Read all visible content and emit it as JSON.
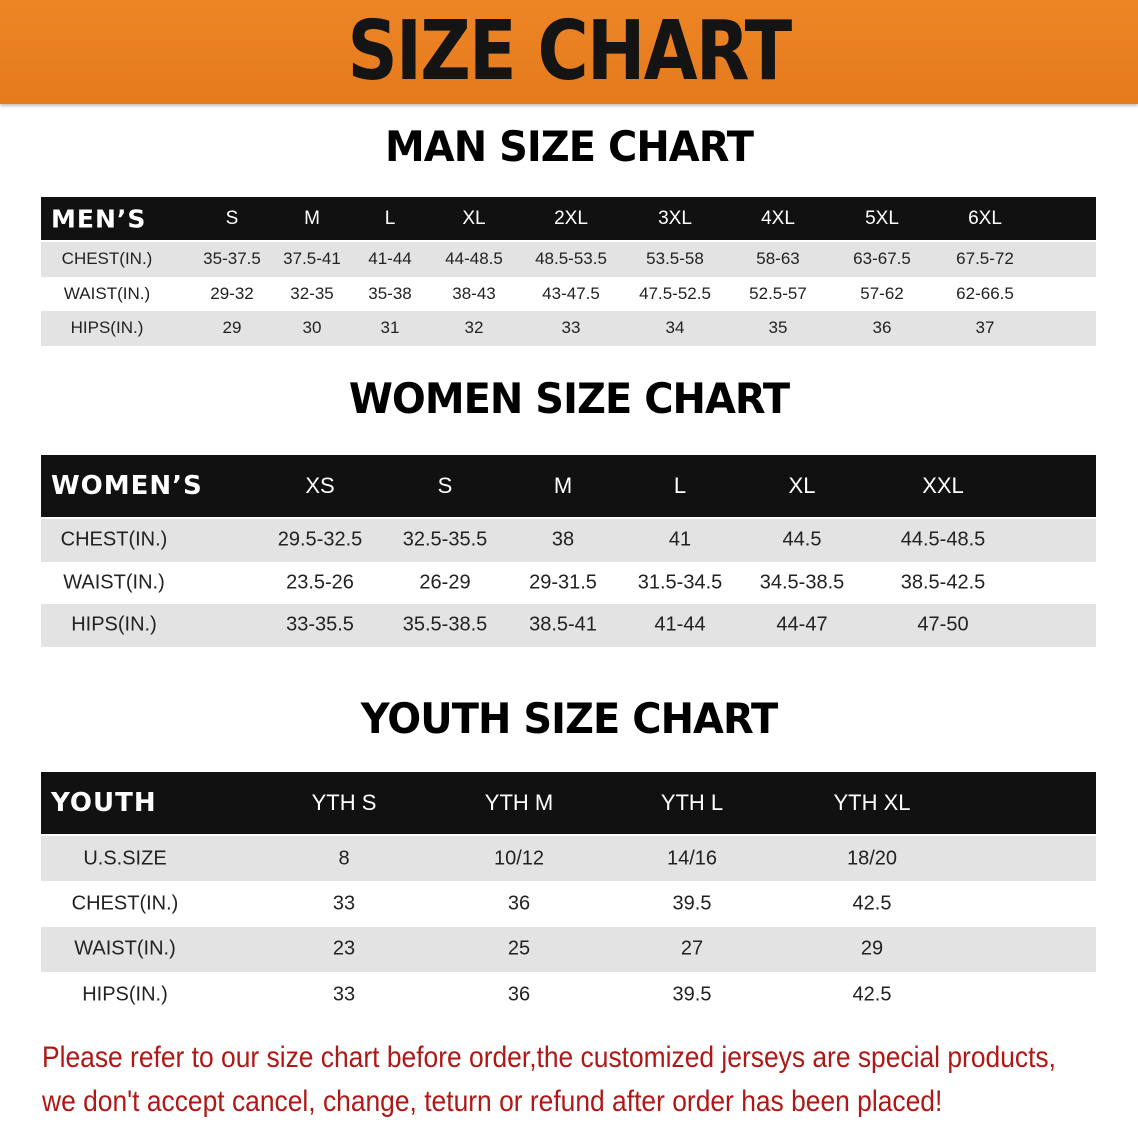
{
  "banner": {
    "title": "SIZE CHART",
    "color": "#e8801f"
  },
  "tables": [
    {
      "title": "MAN SIZE CHART",
      "header_label": "MEN’S",
      "sizes": [
        "S",
        "M",
        "L",
        "XL",
        "2XL",
        "3XL",
        "4XL",
        "5XL",
        "6XL"
      ],
      "rows": [
        {
          "label": "CHEST(IN.)",
          "values": [
            "35-37.5",
            "37.5-41",
            "41-44",
            "44-48.5",
            "48.5-53.5",
            "53.5-58",
            "58-63",
            "63-67.5",
            "67.5-72"
          ]
        },
        {
          "label": "WAIST(IN.)",
          "values": [
            "29-32",
            "32-35",
            "35-38",
            "38-43",
            "43-47.5",
            "47.5-52.5",
            "52.5-57",
            "57-62",
            "62-66.5"
          ]
        },
        {
          "label": "HIPS(IN.)",
          "values": [
            "29",
            "30",
            "31",
            "32",
            "33",
            "34",
            "35",
            "36",
            "37"
          ]
        }
      ]
    },
    {
      "title": "WOMEN SIZE CHART",
      "header_label": "WOMEN’S",
      "sizes": [
        "XS",
        "S",
        "M",
        "L",
        "XL",
        "XXL"
      ],
      "rows": [
        {
          "label": "CHEST(IN.)",
          "values": [
            "29.5-32.5",
            "32.5-35.5",
            "38",
            "41",
            "44.5",
            "44.5-48.5"
          ]
        },
        {
          "label": "WAIST(IN.)",
          "values": [
            "23.5-26",
            "26-29",
            "29-31.5",
            "31.5-34.5",
            "34.5-38.5",
            "38.5-42.5"
          ]
        },
        {
          "label": "HIPS(IN.)",
          "values": [
            "33-35.5",
            "35.5-38.5",
            "38.5-41",
            "41-44",
            "44-47",
            "47-50"
          ]
        }
      ]
    },
    {
      "title": "YOUTH SIZE CHART",
      "header_label": "YOUTH",
      "sizes": [
        "YTH S",
        "YTH M",
        "YTH L",
        "YTH XL"
      ],
      "rows": [
        {
          "label": "U.S.SIZE",
          "values": [
            "8",
            "10/12",
            "14/16",
            "18/20"
          ]
        },
        {
          "label": "CHEST(IN.)",
          "values": [
            "33",
            "36",
            "39.5",
            "42.5"
          ]
        },
        {
          "label": "WAIST(IN.)",
          "values": [
            "23",
            "25",
            "27",
            "29"
          ]
        },
        {
          "label": "HIPS(IN.)",
          "values": [
            "33",
            "36",
            "39.5",
            "42.5"
          ]
        }
      ]
    }
  ],
  "note": {
    "lines": [
      "Please refer to our size chart before order,the customized jerseys are special products,",
      "we don't accept cancel, change, teturn or refund after order has been placed!"
    ],
    "color": "#b01818"
  }
}
